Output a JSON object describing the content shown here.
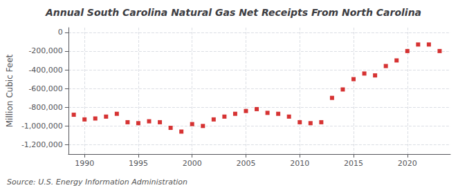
{
  "chart_data": {
    "type": "scatter",
    "title": "Annual South Carolina Natural Gas Net Receipts From North Carolina",
    "ylabel": "Million Cubic Feet",
    "source": "Source: U.S. Energy Information Administration",
    "color": "#cc0000",
    "marker": "square",
    "x": [
      1989,
      1990,
      1991,
      1992,
      1993,
      1994,
      1995,
      1996,
      1997,
      1998,
      1999,
      2000,
      2001,
      2002,
      2003,
      2004,
      2005,
      2006,
      2007,
      2008,
      2009,
      2010,
      2011,
      2012,
      2013,
      2014,
      2015,
      2016,
      2017,
      2018,
      2019,
      2020,
      2021,
      2022,
      2023
    ],
    "values": [
      -880000,
      -930000,
      -920000,
      -900000,
      -870000,
      -960000,
      -970000,
      -950000,
      -960000,
      -1020000,
      -1060000,
      -980000,
      -1000000,
      -930000,
      -900000,
      -870000,
      -840000,
      -820000,
      -860000,
      -870000,
      -900000,
      -960000,
      -970000,
      -960000,
      -700000,
      -610000,
      -500000,
      -440000,
      -460000,
      -360000,
      -300000,
      -200000,
      -130000,
      -130000,
      -200000
    ],
    "xlim": [
      1988.5,
      2024
    ],
    "xticks": [
      1990,
      1995,
      2000,
      2005,
      2010,
      2015,
      2020
    ],
    "ylim": [
      -1300000,
      50000
    ],
    "yticks": [
      0,
      {
        "value": -200000,
        "label": "-200,000"
      },
      {
        "value": -400000,
        "label": "-400,000"
      },
      {
        "value": -600000,
        "label": "-600,000"
      },
      {
        "value": -800000,
        "label": "-800,000"
      },
      {
        "value": -1000000,
        "label": "-1,000,000"
      },
      {
        "value": -1200000,
        "label": "-1,200,000"
      }
    ],
    "grid": true
  }
}
